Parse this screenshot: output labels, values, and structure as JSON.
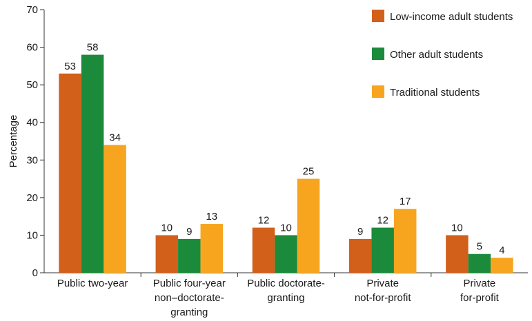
{
  "chart_data": {
    "type": "bar",
    "ylabel": "Percentage",
    "ylim": [
      0,
      70
    ],
    "yticks": [
      0,
      10,
      20,
      30,
      40,
      50,
      60,
      70
    ],
    "grid": false,
    "legend_position": "top-right",
    "categories": [
      [
        "Public two-year"
      ],
      [
        "Public four-year",
        "non–doctorate-",
        "granting"
      ],
      [
        "Public doctorate-",
        "granting"
      ],
      [
        "Private",
        "not-for-profit"
      ],
      [
        "Private",
        "for-profit"
      ]
    ],
    "series": [
      {
        "name": "Low-income adult students",
        "color": "#d2601a",
        "values": [
          53,
          10,
          12,
          9,
          10
        ]
      },
      {
        "name": "Other adult students",
        "color": "#1b8a3a",
        "values": [
          58,
          9,
          10,
          12,
          5
        ]
      },
      {
        "name": "Traditional students",
        "color": "#f7a51e",
        "values": [
          34,
          13,
          25,
          17,
          4
        ]
      }
    ]
  }
}
